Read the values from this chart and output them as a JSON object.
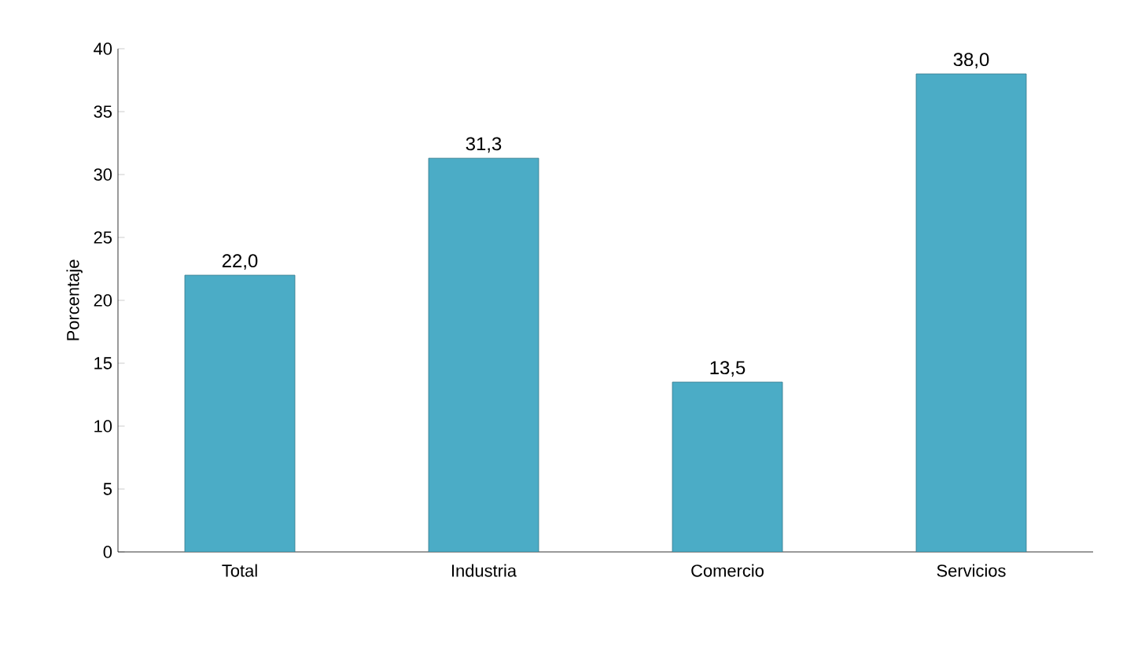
{
  "chart_data": {
    "type": "bar",
    "ylabel": "Porcentaje",
    "categories": [
      "Total",
      "Industria",
      "Comercio",
      "Servicios"
    ],
    "values": [
      22.0,
      31.3,
      13.5,
      38.0
    ],
    "value_labels": [
      "22,0",
      "31,3",
      "13,5",
      "38,0"
    ],
    "color": "#4bacc6",
    "ylim": [
      0,
      40
    ],
    "yticks": [
      0,
      5,
      10,
      15,
      20,
      25,
      30,
      35,
      40
    ]
  }
}
